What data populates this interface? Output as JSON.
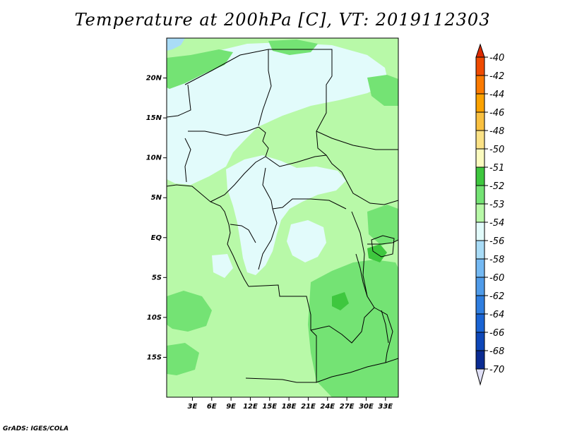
{
  "title": "Temperature at 200hPa [C], VT: 2019112303",
  "credit": "GrADS: IGES/COLA",
  "map": {
    "lat_range": [
      -20,
      25
    ],
    "lon_range": [
      -1,
      35
    ],
    "lat_ticks": [
      "20N",
      "15N",
      "10N",
      "5N",
      "EQ",
      "5S",
      "10S",
      "15S"
    ],
    "lat_tick_values": [
      20,
      15,
      10,
      5,
      0,
      -5,
      -10,
      -15
    ],
    "lon_ticks": [
      "3E",
      "6E",
      "9E",
      "12E",
      "15E",
      "18E",
      "21E",
      "24E",
      "27E",
      "30E",
      "33E"
    ],
    "lon_tick_values": [
      3,
      6,
      9,
      12,
      15,
      18,
      21,
      24,
      27,
      30,
      33
    ]
  },
  "colorbar": {
    "labels": [
      "-40",
      "-42",
      "-44",
      "-46",
      "-48",
      "-50",
      "-51",
      "-52",
      "-53",
      "-54",
      "-56",
      "-58",
      "-60",
      "-62",
      "-64",
      "-66",
      "-68",
      "-70"
    ],
    "colors": [
      "#dd2a00",
      "#ef4a00",
      "#fb7a00",
      "#fba200",
      "#f9c040",
      "#fbe286",
      "#fbfbbf",
      "#3ec73e",
      "#74e374",
      "#b8f9a8",
      "#e2fbfb",
      "#a9dcf7",
      "#74b9f3",
      "#4f9be9",
      "#2f7ee0",
      "#1a64d4",
      "#0e47b8",
      "#0a2b92",
      "#101066"
    ]
  },
  "fields": {
    "base_color": "#b8f9a8",
    "warm_color": "#74e374",
    "warmest_color": "#3ec73e",
    "cool_color": "#e2fbfb",
    "coolest_color": "#a9dcf7"
  }
}
